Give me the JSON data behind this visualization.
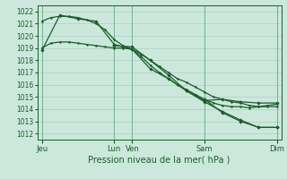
{
  "xlabel": "Pression niveau de la mer( hPa )",
  "bg_color": "#cce8dc",
  "grid_color": "#aacfbe",
  "line_color": "#1a5c2a",
  "ylim": [
    1011.5,
    1022.5
  ],
  "yticks": [
    1012,
    1013,
    1014,
    1015,
    1016,
    1017,
    1018,
    1019,
    1020,
    1021,
    1022
  ],
  "day_x": [
    0,
    8,
    10,
    18,
    26
  ],
  "day_labels": [
    "Jeu",
    "Lun",
    "Ven",
    "Sam",
    "Dim"
  ],
  "line1_x": [
    0,
    1,
    2,
    3,
    4,
    5,
    6,
    7,
    8,
    9,
    10,
    11,
    12,
    13,
    14,
    15,
    16,
    17,
    18,
    19,
    20,
    21,
    22,
    23,
    24,
    25,
    26
  ],
  "line1_y": [
    1019.0,
    1019.4,
    1019.5,
    1019.5,
    1019.4,
    1019.3,
    1019.2,
    1019.1,
    1019.0,
    1019.0,
    1018.9,
    1018.5,
    1018.0,
    1017.5,
    1017.0,
    1016.5,
    1016.2,
    1015.8,
    1015.4,
    1015.0,
    1014.8,
    1014.6,
    1014.5,
    1014.3,
    1014.2,
    1014.2,
    1014.2
  ],
  "line2_x": [
    0,
    1,
    2,
    3,
    4,
    5,
    6,
    7,
    8,
    9,
    10,
    11,
    12,
    13,
    14,
    15,
    16,
    17,
    18,
    19,
    20,
    21,
    22,
    23,
    24,
    25,
    26
  ],
  "line2_y": [
    1021.2,
    1021.5,
    1021.6,
    1021.6,
    1021.5,
    1021.3,
    1021.0,
    1020.5,
    1019.7,
    1019.2,
    1018.9,
    1018.3,
    1017.6,
    1017.0,
    1016.5,
    1016.0,
    1015.6,
    1015.2,
    1014.8,
    1014.5,
    1014.3,
    1014.2,
    1014.2,
    1014.1,
    1014.2,
    1014.3,
    1014.4
  ],
  "line3_x": [
    0,
    2,
    4,
    6,
    8,
    10,
    12,
    14,
    16,
    18,
    20,
    22,
    24,
    26
  ],
  "line3_y": [
    1018.8,
    1021.7,
    1021.4,
    1021.2,
    1019.3,
    1018.9,
    1017.3,
    1016.5,
    1015.5,
    1014.7,
    1014.8,
    1014.6,
    1014.5,
    1014.5
  ],
  "line4_x": [
    8,
    10,
    12,
    14,
    16,
    18,
    20,
    22,
    24,
    26
  ],
  "line4_y": [
    1019.2,
    1019.1,
    1018.0,
    1016.8,
    1015.5,
    1014.6,
    1013.8,
    1013.1,
    1012.5,
    1012.5
  ],
  "line5_x": [
    18,
    20,
    22,
    24,
    26
  ],
  "line5_y": [
    1014.8,
    1013.7,
    1013.0,
    1012.5,
    1012.5
  ]
}
